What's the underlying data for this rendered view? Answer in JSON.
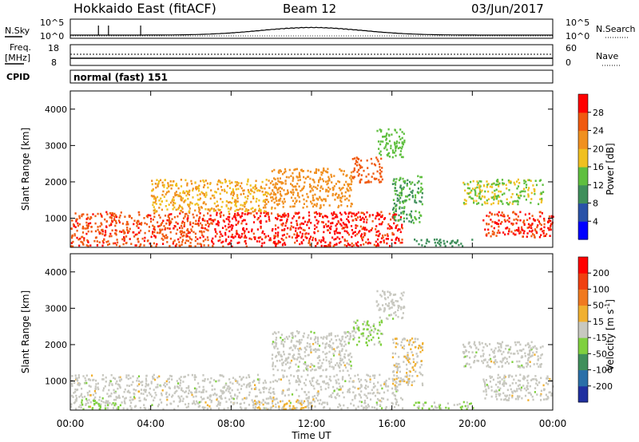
{
  "header": {
    "station": "Hokkaido East (fitACF)",
    "beam": "Beam 12",
    "date": "03/Jun/2017"
  },
  "noise_panel": {
    "left_label": "N.Sky",
    "right_label": "N.Search",
    "left_ticks": [
      "10^5",
      "10^0"
    ],
    "right_ticks": [
      "10^5",
      "10^0"
    ]
  },
  "freq_panel": {
    "left_label_1": "Freq.",
    "left_label_2": "[MHz]",
    "right_label": "Nave",
    "left_ticks": [
      "18",
      "8"
    ],
    "right_ticks": [
      "60",
      "0"
    ]
  },
  "cpid_panel": {
    "label": "CPID",
    "mode": "normal (fast) 151"
  },
  "chart_data": [
    {
      "type": "heatmap",
      "quantity": "Power",
      "ylabel": "Slant Range [km]",
      "xlabel": "",
      "ylim": [
        200,
        4500
      ],
      "yticks": [
        "1000",
        "2000",
        "3000",
        "4000"
      ],
      "colorbar_label": "Power [dB]",
      "colorbar_ticks": [
        "4",
        "8",
        "12",
        "16",
        "20",
        "24",
        "28"
      ],
      "colorbar_range": [
        0,
        32
      ],
      "colors": [
        "#0000ff",
        "#2a52a8",
        "#3f8f5b",
        "#5fbf3f",
        "#f0c020",
        "#f09020",
        "#f05a10",
        "#ff0000"
      ],
      "regions": [
        {
          "t": [
            0,
            7
          ],
          "r": [
            250,
            1200
          ],
          "value": 27
        },
        {
          "t": [
            7,
            16.5
          ],
          "r": [
            250,
            1200
          ],
          "value": 29
        },
        {
          "t": [
            20.5,
            24
          ],
          "r": [
            500,
            1200
          ],
          "value": 28
        },
        {
          "t": [
            4,
            10
          ],
          "r": [
            1200,
            2100
          ],
          "value": 20
        },
        {
          "t": [
            10,
            14
          ],
          "r": [
            1300,
            2400
          ],
          "value": 22
        },
        {
          "t": [
            14,
            15.5
          ],
          "r": [
            2000,
            2700
          ],
          "value": 26
        },
        {
          "t": [
            15.2,
            16.6
          ],
          "r": [
            2700,
            3500
          ],
          "value": 14
        },
        {
          "t": [
            16,
            17.5
          ],
          "r": [
            900,
            2200
          ],
          "value": 12
        },
        {
          "t": [
            19.5,
            23.5
          ],
          "r": [
            1400,
            2100
          ],
          "value": 16
        },
        {
          "t": [
            17,
            20
          ],
          "r": [
            250,
            450
          ],
          "value": 10
        }
      ]
    },
    {
      "type": "heatmap",
      "quantity": "Velocity",
      "ylabel": "Slant Range [km]",
      "xlabel": "Time UT",
      "ylim": [
        200,
        4500
      ],
      "yticks": [
        "1000",
        "2000",
        "3000",
        "4000"
      ],
      "colorbar_label": "Velocity [m s^-1]",
      "colorbar_ticks": [
        "200",
        "100",
        "50",
        "15",
        "-15",
        "-50",
        "-100",
        "-200"
      ],
      "colorbar_range": [
        -250,
        250
      ],
      "colors": [
        "#2030a0",
        "#2a6fa8",
        "#3f8f5b",
        "#7fd03f",
        "#c8c8c0",
        "#f0b030",
        "#f07a20",
        "#f04010",
        "#ff0000"
      ],
      "regions": [
        {
          "t": [
            0,
            16.5
          ],
          "r": [
            250,
            1200
          ],
          "value": 0
        },
        {
          "t": [
            20.5,
            24
          ],
          "r": [
            500,
            1200
          ],
          "value": 0
        },
        {
          "t": [
            10,
            14
          ],
          "r": [
            1300,
            2400
          ],
          "value": 0
        },
        {
          "t": [
            14,
            15.5
          ],
          "r": [
            2000,
            2700
          ],
          "value": -40
        },
        {
          "t": [
            15.2,
            16.6
          ],
          "r": [
            2700,
            3500
          ],
          "value": 0
        },
        {
          "t": [
            16,
            17.5
          ],
          "r": [
            900,
            2200
          ],
          "value": 20
        },
        {
          "t": [
            19.5,
            23.5
          ],
          "r": [
            1400,
            2100
          ],
          "value": 0
        },
        {
          "t": [
            17,
            20
          ],
          "r": [
            250,
            450
          ],
          "value": -40
        },
        {
          "t": [
            0.5,
            2.5
          ],
          "r": [
            250,
            500
          ],
          "value": -40
        },
        {
          "t": [
            9,
            12
          ],
          "r": [
            250,
            500
          ],
          "value": 30
        }
      ]
    }
  ],
  "time_axis": {
    "label": "Time UT",
    "ticks": [
      "00:00",
      "04:00",
      "08:00",
      "12:00",
      "16:00",
      "20:00",
      "00:00"
    ],
    "range_hours": [
      0,
      24
    ]
  }
}
